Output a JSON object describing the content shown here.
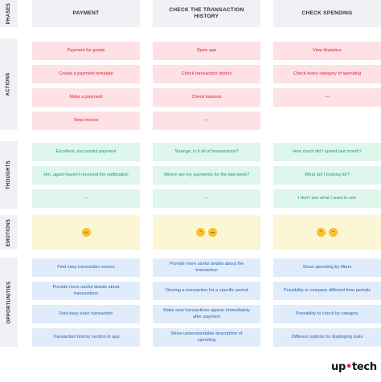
{
  "rows": {
    "phases": "PHASES",
    "actions": "ACTIONS",
    "thoughts": "THOUGHTS",
    "emotions": "EMOTIONS",
    "opportunities": "OPPORTUNITIES"
  },
  "headers": [
    "PAYMENT",
    "CHECK THE TRANSACTION HISTORY",
    "CHECK SPENDING"
  ],
  "actions": [
    [
      "Payment for goods",
      "Open app",
      "View Analytics"
    ],
    [
      "Create a payment template",
      "Check transaction history",
      "Check every category of spending"
    ],
    [
      "Make a payment",
      "Check balance",
      "—"
    ],
    [
      "View invoice",
      "—",
      ""
    ]
  ],
  "thoughts": [
    [
      "Excellent, successful payment",
      "Strange, is it all of transactions?",
      "How much did I spend last month?"
    ],
    [
      "Hm, again haven't received the notification",
      "Where are my payments for the last week?",
      "What am I looking for?"
    ],
    [
      "—",
      "—",
      "I don't see what I want to see"
    ]
  ],
  "emotions": [
    {
      "icons": [
        "grinning-face-icon"
      ]
    },
    {
      "icons": [
        "thinking-face-icon",
        "worried-face-icon"
      ]
    },
    {
      "icons": [
        "thinking-face-icon",
        "confused-face-icon"
      ]
    }
  ],
  "opportunities": [
    [
      "Find easy transaction screen",
      "Provide more useful details about the transaction",
      "Show spending by filters"
    ],
    [
      "Provide more useful details about transactions",
      "Viewing a transaction for a specific period",
      "Possibility to compare different time periods"
    ],
    [
      "Find easy each transaction",
      "Make new transactions appear immediately after payment",
      "Possibility to check by category"
    ],
    [
      "Transaction history section in app",
      "Show understandable description of spending",
      "Different options for displaying stats"
    ]
  ],
  "logo": {
    "part1": "up",
    "dot": "•",
    "part2": "tech"
  },
  "colors": {
    "actions": "#d6223a",
    "thoughts": "#1e9c6a",
    "opportunities": "#2a62b8",
    "emotions_bg": "#fdf6d4"
  }
}
